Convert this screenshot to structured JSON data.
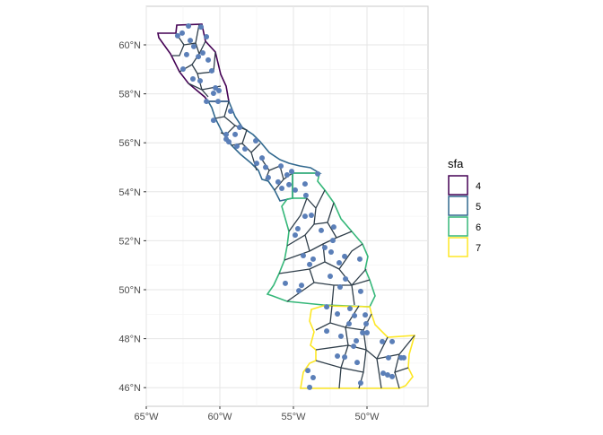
{
  "chart_data": {
    "type": "map",
    "xlim": [
      -65.0,
      -46.0
    ],
    "ylim": [
      45.6,
      61.5
    ],
    "x_ticks": [
      "65°W",
      "60°W",
      "55°W",
      "50°W"
    ],
    "x_tick_values": [
      -65,
      -60,
      -55,
      -50
    ],
    "y_ticks": [
      "60°N",
      "58°N",
      "56°N",
      "54°N",
      "52°N",
      "50°N",
      "48°N",
      "46°N"
    ],
    "y_tick_values": [
      60,
      58,
      56,
      54,
      52,
      50,
      48,
      46
    ],
    "grid": true,
    "legend": {
      "title": "sfa",
      "placement": "right",
      "entries": [
        {
          "label": "4",
          "color": "#440154"
        },
        {
          "label": "5",
          "color": "#31688e"
        },
        {
          "label": "6",
          "color": "#35b779"
        },
        {
          "label": "7",
          "color": "#fde725"
        }
      ]
    },
    "point_color": "#5b7fb8",
    "cell_line_color": "#2f3e4a",
    "points": [
      [
        -62.56,
        60.48
      ],
      [
        -62.13,
        60.77
      ],
      [
        -61.28,
        60.73
      ],
      [
        -62.87,
        60.37
      ],
      [
        -62.01,
        60.18
      ],
      [
        -61.77,
        59.93
      ],
      [
        -60.91,
        60.33
      ],
      [
        -61.16,
        59.67
      ],
      [
        -61.46,
        59.52
      ],
      [
        -62.26,
        59.6
      ],
      [
        -60.79,
        59.38
      ],
      [
        -60.55,
        58.94
      ],
      [
        -61.83,
        58.61
      ],
      [
        -61.34,
        58.53
      ],
      [
        -62.5,
        59.01
      ],
      [
        -60.3,
        58.24
      ],
      [
        -60.06,
        58.13
      ],
      [
        -60.43,
        58.02
      ],
      [
        -60.12,
        57.69
      ],
      [
        -60.91,
        57.69
      ],
      [
        -59.27,
        57.29
      ],
      [
        -60.43,
        56.92
      ],
      [
        -58.66,
        56.63
      ],
      [
        -59.57,
        56.34
      ],
      [
        -58.96,
        56.34
      ],
      [
        -59.39,
        56.04
      ],
      [
        -58.84,
        55.86
      ],
      [
        -59.57,
        56.15
      ],
      [
        -57.56,
        56.08
      ],
      [
        -58.29,
        55.75
      ],
      [
        -57.13,
        55.38
      ],
      [
        -57.5,
        55.16
      ],
      [
        -56.89,
        55.0
      ],
      [
        -56.71,
        54.58
      ],
      [
        -56.04,
        54.4
      ],
      [
        -55.79,
        54.14
      ],
      [
        -55.43,
        54.69
      ],
      [
        -55.12,
        54.83
      ],
      [
        -55.85,
        55.05
      ],
      [
        -55.3,
        54.29
      ],
      [
        -54.88,
        54.07
      ],
      [
        -54.21,
        54.32
      ],
      [
        -54.15,
        53.85
      ],
      [
        -53.35,
        54.73
      ],
      [
        -54.21,
        53.0
      ],
      [
        -53.78,
        53.04
      ],
      [
        -54.7,
        52.49
      ],
      [
        -54.88,
        52.23
      ],
      [
        -53.11,
        52.42
      ],
      [
        -52.26,
        52.56
      ],
      [
        -54.33,
        51.39
      ],
      [
        -53.66,
        51.25
      ],
      [
        -52.32,
        52.01
      ],
      [
        -52.87,
        51.72
      ],
      [
        -52.44,
        51.54
      ],
      [
        -51.52,
        51.36
      ],
      [
        -51.89,
        51.1
      ],
      [
        -50.49,
        51.25
      ],
      [
        -53.9,
        51.03
      ],
      [
        -52.5,
        50.55
      ],
      [
        -51.46,
        50.44
      ],
      [
        -55.55,
        50.26
      ],
      [
        -54.45,
        50.18
      ],
      [
        -54.63,
        49.96
      ],
      [
        -50.43,
        49.93
      ],
      [
        -51.83,
        50.11
      ],
      [
        -52.74,
        49.3
      ],
      [
        -51.16,
        49.23
      ],
      [
        -52.01,
        49.01
      ],
      [
        -50.85,
        48.94
      ],
      [
        -50.12,
        48.97
      ],
      [
        -50.06,
        48.61
      ],
      [
        -51.22,
        48.61
      ],
      [
        -50.3,
        48.24
      ],
      [
        -50.0,
        48.24
      ],
      [
        -52.74,
        48.31
      ],
      [
        -51.77,
        48.1
      ],
      [
        -50.73,
        47.91
      ],
      [
        -50.91,
        47.69
      ],
      [
        -52.01,
        47.29
      ],
      [
        -51.52,
        47.25
      ],
      [
        -50.67,
        47.03
      ],
      [
        -48.96,
        47.88
      ],
      [
        -48.29,
        47.88
      ],
      [
        -47.5,
        47.22
      ],
      [
        -48.54,
        47.22
      ],
      [
        -47.68,
        47.22
      ],
      [
        -54.02,
        46.7
      ],
      [
        -53.66,
        46.41
      ],
      [
        -53.9,
        46.01
      ],
      [
        -48.6,
        46.52
      ],
      [
        -48.29,
        46.45
      ],
      [
        -48.9,
        46.59
      ],
      [
        -50.43,
        46.19
      ]
    ]
  }
}
